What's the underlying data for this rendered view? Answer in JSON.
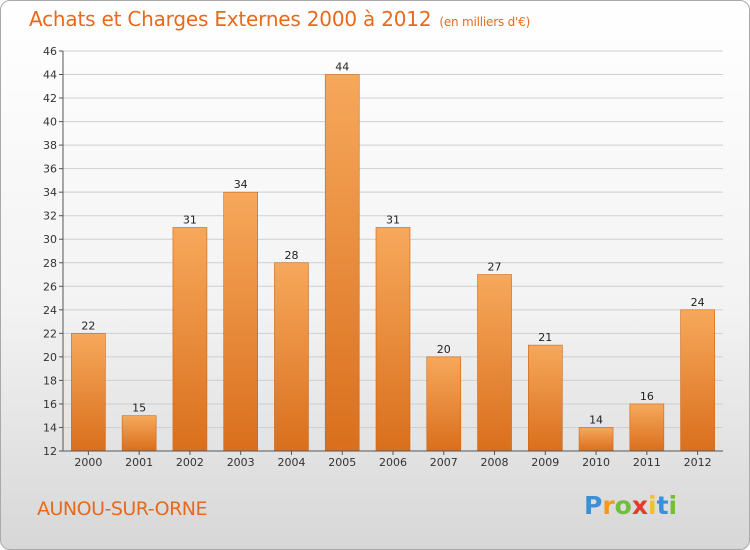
{
  "header": {
    "title": "Achats et Charges Externes 2000 à 2012",
    "subtitle": "(en milliers d'€)"
  },
  "footer": {
    "place": "AUNOU-SUR-ORNE",
    "logo": {
      "letters": [
        "P",
        "r",
        "o",
        "x",
        "i",
        "t",
        "i"
      ],
      "colors": [
        "#3a8fd6",
        "#f29a1f",
        "#6fbf3b",
        "#e23c2a",
        "#f2c21f",
        "#3a8fd6",
        "#6fbf3b"
      ]
    }
  },
  "colors": {
    "accent": "#e8691c",
    "bar_top": "#f7a85b",
    "bar_bottom": "#d96f1d"
  },
  "chart_data": {
    "type": "bar",
    "categories": [
      "2000",
      "2001",
      "2002",
      "2003",
      "2004",
      "2005",
      "2006",
      "2007",
      "2008",
      "2009",
      "2010",
      "2011",
      "2012"
    ],
    "values": [
      22,
      15,
      31,
      34,
      28,
      44,
      31,
      20,
      27,
      21,
      14,
      16,
      24
    ],
    "ylim": [
      12,
      46
    ],
    "yticks": [
      12,
      14,
      16,
      18,
      20,
      22,
      24,
      26,
      28,
      30,
      32,
      34,
      36,
      38,
      40,
      42,
      44,
      46
    ],
    "grid": true,
    "data_labels": true
  }
}
